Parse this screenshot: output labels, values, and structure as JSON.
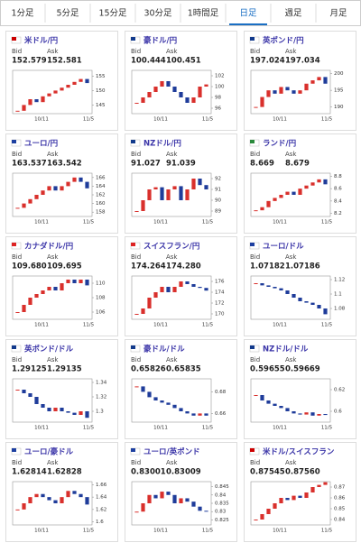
{
  "tabs": {
    "items": [
      "1分足",
      "5分足",
      "15分足",
      "30分足",
      "1時間足",
      "日足",
      "週足",
      "月足"
    ],
    "active": 5
  },
  "labels": {
    "bid": "Bid",
    "ask": "Ask"
  },
  "x_labels": [
    "10/11",
    "11/5"
  ],
  "cards": [
    {
      "pair": "米ドル/円",
      "bid": "152.579",
      "ask": "152.581",
      "ylim": [
        142,
        157
      ],
      "yticks": [
        155,
        150,
        145
      ],
      "closes": [
        143,
        145,
        147,
        146,
        148,
        149,
        150,
        151,
        152,
        153,
        154,
        152.6
      ]
    },
    {
      "pair": "豪ドル/円",
      "bid": "100.444",
      "ask": "100.451",
      "ylim": [
        95,
        103
      ],
      "yticks": [
        102,
        100,
        98,
        96
      ],
      "closes": [
        97,
        98,
        99,
        100,
        101,
        100,
        99,
        98,
        97,
        98,
        100,
        100.4
      ]
    },
    {
      "pair": "英ポンド/円",
      "bid": "197.024",
      "ask": "197.034",
      "ylim": [
        188,
        201
      ],
      "yticks": [
        200,
        195,
        190
      ],
      "closes": [
        190,
        193,
        195,
        194,
        196,
        195,
        194,
        195,
        197,
        198,
        199,
        197
      ]
    },
    {
      "pair": "ユーロ/円",
      "bid": "163.537",
      "ask": "163.542",
      "ylim": [
        157,
        167
      ],
      "yticks": [
        166,
        164,
        162,
        160,
        158
      ],
      "closes": [
        159,
        160,
        161,
        162,
        163,
        164,
        163,
        164,
        165,
        166,
        165,
        163.5
      ]
    },
    {
      "pair": "NZドル/円",
      "bid": "91.027",
      "ask": "91.039",
      "ylim": [
        88.5,
        92.5
      ],
      "yticks": [
        92,
        91,
        90,
        89
      ],
      "closes": [
        89,
        90,
        91,
        91.2,
        90,
        91,
        91.3,
        90,
        91,
        92,
        91.4,
        91
      ]
    },
    {
      "pair": "ランド/円",
      "bid": "8.669",
      "ask": "8.679",
      "ylim": [
        8.15,
        8.85
      ],
      "yticks": [
        8.8,
        8.6,
        8.4,
        8.2
      ],
      "closes": [
        8.25,
        8.3,
        8.4,
        8.45,
        8.5,
        8.55,
        8.5,
        8.6,
        8.65,
        8.7,
        8.75,
        8.67
      ]
    },
    {
      "pair": "カナダドル/円",
      "bid": "109.680",
      "ask": "109.695",
      "ylim": [
        105,
        111
      ],
      "yticks": [
        110,
        108,
        106
      ],
      "closes": [
        106,
        107,
        108,
        108.5,
        109,
        109.5,
        109,
        110,
        110.5,
        110,
        110.5,
        109.7
      ]
    },
    {
      "pair": "スイスフラン/円",
      "bid": "174.264",
      "ask": "174.280",
      "ylim": [
        169,
        177
      ],
      "yticks": [
        176,
        174,
        172,
        170
      ],
      "closes": [
        170,
        171,
        173,
        174,
        175,
        174,
        175,
        176,
        175.5,
        175,
        174.8,
        174.3
      ]
    },
    {
      "pair": "ユーロ/ドル",
      "bid": "1.07182",
      "ask": "1.07186",
      "ylim": [
        1.065,
        1.125
      ],
      "yticks": [
        1.12,
        1.1,
        1.08
      ],
      "closes": [
        1.115,
        1.112,
        1.11,
        1.108,
        1.105,
        1.1,
        1.095,
        1.09,
        1.088,
        1.085,
        1.08,
        1.072
      ]
    },
    {
      "pair": "英ポンド/ドル",
      "bid": "1.29125",
      "ask": "1.29135",
      "ylim": [
        1.285,
        1.345
      ],
      "yticks": [
        1.34,
        1.32,
        1.3
      ],
      "closes": [
        1.33,
        1.325,
        1.32,
        1.31,
        1.305,
        1.3,
        1.305,
        1.3,
        1.298,
        1.295,
        1.3,
        1.291
      ]
    },
    {
      "pair": "豪ドル/ドル",
      "bid": "0.65826",
      "ask": "0.65835",
      "ylim": [
        0.652,
        0.692
      ],
      "yticks": [
        0.68,
        0.66
      ],
      "closes": [
        0.685,
        0.68,
        0.675,
        0.672,
        0.67,
        0.668,
        0.665,
        0.662,
        0.66,
        0.658,
        0.66,
        0.658
      ]
    },
    {
      "pair": "NZドル/ドル",
      "bid": "0.59655",
      "ask": "0.59669",
      "ylim": [
        0.59,
        0.63
      ],
      "yticks": [
        0.62,
        0.6
      ],
      "closes": [
        0.615,
        0.61,
        0.607,
        0.605,
        0.603,
        0.6,
        0.598,
        0.597,
        0.599,
        0.596,
        0.5975,
        0.5966
      ]
    },
    {
      "pair": "ユーロ/豪ドル",
      "bid": "1.62814",
      "ask": "1.62828",
      "ylim": [
        1.595,
        1.665
      ],
      "yticks": [
        1.66,
        1.64,
        1.62,
        1.6
      ],
      "closes": [
        1.62,
        1.63,
        1.64,
        1.645,
        1.64,
        1.635,
        1.63,
        1.64,
        1.65,
        1.645,
        1.64,
        1.628
      ]
    },
    {
      "pair": "ユーロ/英ポンド",
      "bid": "0.83001",
      "ask": "0.83009",
      "ylim": [
        0.822,
        0.848
      ],
      "yticks": [
        0.845,
        0.84,
        0.835,
        0.83,
        0.825
      ],
      "closes": [
        0.83,
        0.835,
        0.84,
        0.838,
        0.842,
        0.84,
        0.835,
        0.838,
        0.836,
        0.833,
        0.8305,
        0.83
      ]
    },
    {
      "pair": "米ドル/スイスフラン",
      "bid": "0.87545",
      "ask": "0.87560",
      "ylim": [
        0.835,
        0.875
      ],
      "yticks": [
        0.87,
        0.86,
        0.85,
        0.84
      ],
      "closes": [
        0.84,
        0.845,
        0.85,
        0.855,
        0.86,
        0.858,
        0.862,
        0.86,
        0.865,
        0.87,
        0.872,
        0.8745
      ]
    }
  ]
}
